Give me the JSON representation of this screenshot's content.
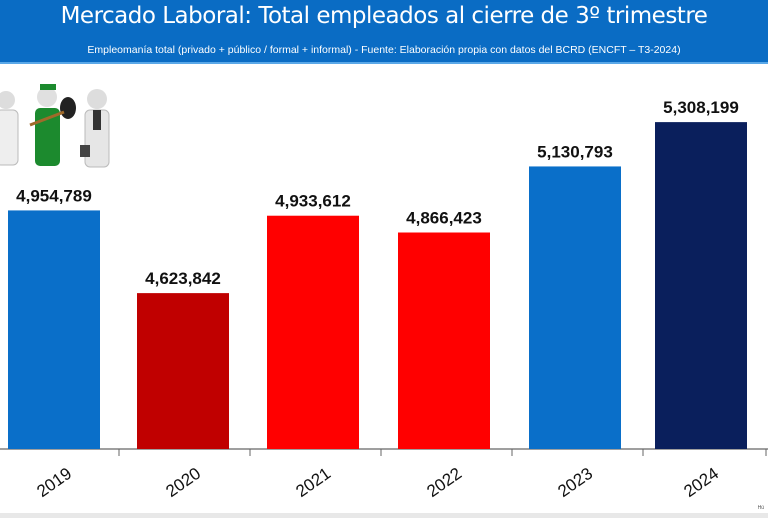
{
  "header": {
    "title": "Mercado Laboral: Total empleados al cierre de 3º trimestre",
    "subtitle": "Empleomanía total (privado + público / formal + informal) - Fuente: Elaboración propia con datos del BCRD (ENCFT – T3-2024)"
  },
  "credit": "Hü",
  "chart_data": {
    "type": "bar",
    "title": "Mercado Laboral: Total empleados al cierre de 3º trimestre",
    "subtitle": "Empleomanía total (privado + público / formal + informal) - Fuente: Elaboración propia con datos del BCRD (ENCFT – T3-2024)",
    "categories": [
      "2019",
      "2020",
      "2021",
      "2022",
      "2023",
      "2024"
    ],
    "values": [
      4954789,
      4623842,
      4933612,
      4866423,
      5130793,
      5308199
    ],
    "labels": [
      "4,954,789",
      "4,623,842",
      "4,933,612",
      "4,866,423",
      "5,130,793",
      "5,308,199"
    ],
    "colors": [
      "#0a6fc9",
      "#c00000",
      "#ff0000",
      "#ff0000",
      "#0a6fc9",
      "#0a1f5c"
    ],
    "ylim": [
      4000000,
      5400000
    ],
    "grid": false,
    "xlabel": "",
    "ylabel": ""
  }
}
